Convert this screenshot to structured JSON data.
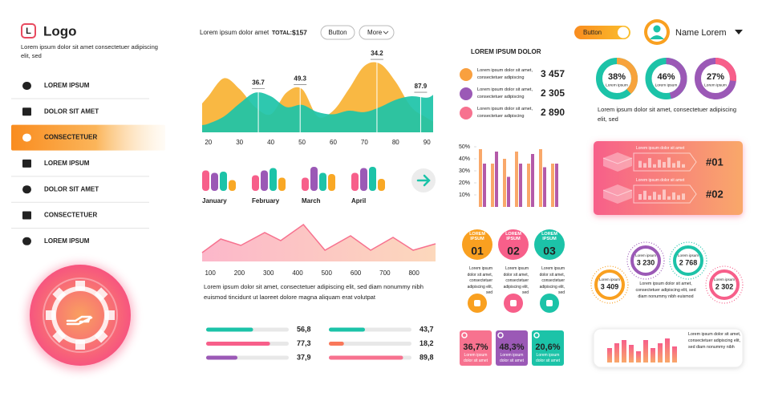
{
  "sidebar": {
    "logo_mark": "L",
    "logo": "Logo",
    "tagline": "Lorem ipsum dolor sit amet consectetuer adipiscing elit, sed",
    "menu": [
      "LOREM IPSUM",
      "DOLOR SIT AMET",
      "CONSECTETUER",
      "LOREM IPSUM",
      "DOLOR SIT AMET",
      "CONSECTETUER",
      "LOREM IPSUM"
    ],
    "active": 2
  },
  "header": {
    "label": "Lorem ipsum dolor amet",
    "total_label": "TOTAL:",
    "total": "$157",
    "buttons": [
      "Button",
      "More"
    ],
    "toggle": "Button",
    "user": "Name Lorem"
  },
  "area_chart": {
    "type": "area",
    "x": [
      18,
      20,
      25,
      30,
      35,
      40,
      45,
      50,
      55,
      60,
      65,
      70,
      75,
      80,
      85,
      90,
      92
    ],
    "series": [
      {
        "color": "#f9b233",
        "values": [
          40,
          50,
          75,
          60,
          35,
          25,
          55,
          60,
          22,
          30,
          60,
          92,
          95,
          70,
          35,
          20,
          15
        ]
      },
      {
        "color": "#1cc3a8",
        "values": [
          10,
          12,
          22,
          40,
          55,
          50,
          35,
          38,
          28,
          25,
          30,
          28,
          35,
          45,
          50,
          48,
          52
        ]
      }
    ],
    "xlim": [
      18,
      92
    ],
    "xticks": [
      20,
      30,
      40,
      50,
      60,
      70,
      80,
      90
    ],
    "ylim": [
      0,
      100
    ],
    "annotations": [
      {
        "x": 36,
        "text": "36.7"
      },
      {
        "x": 49.4,
        "text": "49.3"
      },
      {
        "x": 74,
        "text": "34.2"
      },
      {
        "x": 88,
        "text": "87.9"
      }
    ]
  },
  "group_bars": {
    "type": "bar",
    "categories": [
      "January",
      "February",
      "March",
      "April"
    ],
    "ylim": [
      0,
      100
    ],
    "series": [
      {
        "color": "#f75f8a",
        "values": [
          85,
          65,
          55,
          75
        ]
      },
      {
        "color": "#9b59b6",
        "values": [
          75,
          85,
          100,
          95
        ]
      },
      {
        "color": "#1cc3a8",
        "values": [
          80,
          95,
          75,
          100
        ]
      },
      {
        "color": "#f9a825",
        "values": [
          45,
          55,
          70,
          50
        ]
      }
    ]
  },
  "pink_area": {
    "type": "area",
    "x": [
      72,
      136,
      205,
      287,
      342,
      420,
      494,
      582,
      651,
      728,
      797,
      874
    ],
    "values": [
      22,
      56,
      40,
      72,
      52,
      92,
      28,
      64,
      28,
      60,
      28,
      44
    ],
    "color": "#f7728f",
    "xlim": [
      72,
      874
    ],
    "xticks": [
      100,
      200,
      300,
      400,
      500,
      600,
      700,
      800
    ],
    "ylim": [
      0,
      100
    ]
  },
  "paragraph": "Lorem ipsum dolor sit amet, consectetuer adipiscing elit, sed diam nonummy nibh euismod tincidunt ut laoreet dolore magna aliquam erat volutpat",
  "progress": {
    "type": "progress",
    "xlim": [
      0,
      100
    ],
    "values": [
      56.8,
      77.3,
      37.9,
      43.7,
      18.2,
      89.8
    ],
    "value_labels": [
      "56,8",
      "77,3",
      "37,9",
      "43,7",
      "18,2",
      "89,8"
    ],
    "colors": [
      "#1cc3a8",
      "#f75f8a",
      "#9b59b6",
      "#1cc3a8",
      "#f9785a",
      "#f7728f"
    ]
  },
  "stats": {
    "title": "LOREM IPSUM DOLOR",
    "items": [
      {
        "text": "Lorem ipsum dolor sit amet, consectetuer adipiscing",
        "value": "3 457",
        "color": "#f9a03f"
      },
      {
        "text": "Lorem ipsum dolor sit amet, consectetuer adipiscing",
        "value": "2 305",
        "color": "#9b59b6"
      },
      {
        "text": "Lorem ipsum dolor sit amet, consectetuer adipiscing",
        "value": "2 890",
        "color": "#f7728f"
      }
    ]
  },
  "pct_bars": {
    "type": "bar",
    "categories": [
      null,
      null,
      null,
      null,
      null,
      null,
      null
    ],
    "ylim": [
      0,
      52
    ],
    "yticks": [
      {
        "value": 10,
        "label": "10%"
      },
      {
        "value": 20,
        "label": "20%"
      },
      {
        "value": 30,
        "label": "30%"
      },
      {
        "value": 40,
        "label": "40%"
      },
      {
        "value": 50,
        "label": "50%"
      }
    ],
    "series": [
      {
        "color": "#f9a86a",
        "values": [
          48,
          36,
          40,
          46,
          36,
          48,
          36
        ]
      },
      {
        "color": "#b45aa8",
        "values": [
          36,
          46,
          25,
          36,
          44,
          33,
          36
        ]
      }
    ]
  },
  "steps": {
    "items": [
      {
        "title": "LOREM IPSUM",
        "number": "01",
        "text": "Lorem ipsum dolor sit amet, consectetuer adipiscing elit, sed",
        "color": "#f9a020"
      },
      {
        "title": "LOREM IPSUM",
        "number": "02",
        "text": "Lorem ipsum dolor sit amet, consectetuer adipiscing elit, sed",
        "color": "#f75f8a"
      },
      {
        "title": "LOREM IPSUM",
        "number": "03",
        "text": "Lorem ipsum dolor sit amet, consectetuer adipiscing elit, sed",
        "color": "#1cc3a8"
      }
    ]
  },
  "badges": {
    "items": [
      {
        "value": "36,7%",
        "text": "Lorem ipsum dolor sit amet",
        "color": "#f7728f"
      },
      {
        "value": "48,3%",
        "text": "Lorem ipsum dolor sit amet",
        "color": "#9b59b6"
      },
      {
        "value": "20,6%",
        "text": "Lorem ipsum dolor sit amet",
        "color": "#1cc3a8"
      }
    ]
  },
  "donuts": {
    "type": "pie",
    "values": [
      38,
      46,
      27
    ],
    "value_labels": [
      "38%",
      "46%",
      "27%"
    ],
    "labels": [
      "Lorem ipsum",
      "Lorem ipsum",
      "Lorem ipsum"
    ],
    "colors": [
      [
        "#f7a33c",
        "#1cc3a8"
      ],
      [
        "#9b59b6",
        "#1cc3a8"
      ],
      [
        "#f75f8a",
        "#9b59b6"
      ]
    ],
    "text": "Lorem ipsum dolor sit amet, consectetuer adipiscing elit, sed"
  },
  "ranking": {
    "items": [
      {
        "text": "Lorem ipsum dolor sit amet",
        "tag": "#01",
        "bars": [
          60,
          40,
          85,
          30,
          70,
          50,
          90,
          40,
          60,
          30
        ]
      },
      {
        "text": "Lorem ipsum dolor sit amet",
        "tag": "#02",
        "bars": [
          50,
          80,
          35,
          70,
          45,
          90,
          30,
          65,
          40,
          55
        ]
      }
    ],
    "ylim": [
      0,
      100
    ]
  },
  "bubbles": {
    "items": [
      {
        "label": "Lorem ipsum",
        "value": "3 409",
        "color": "#f9a020"
      },
      {
        "label": "Lorem ipsum",
        "value": "3 230",
        "color": "#9b59b6"
      },
      {
        "label": "Lorem ipsum",
        "value": "2 768",
        "color": "#1cc3a8"
      },
      {
        "label": "Lorem ipsum",
        "value": "2 302",
        "color": "#f75f8a"
      }
    ],
    "text": "Lorem ipsum dolor sit amet, consectetuer adipiscing elit, sed diam nonummy nibh euismod"
  },
  "mini_chart": {
    "type": "bar",
    "values": [
      18,
      24,
      28,
      22,
      14,
      28,
      18,
      24,
      30,
      20
    ],
    "ylim": [
      0,
      32
    ],
    "text": "Lorem ipsum dolor sit amet, consectetuer adipiscing elit, sed diam nonummy nibh"
  }
}
